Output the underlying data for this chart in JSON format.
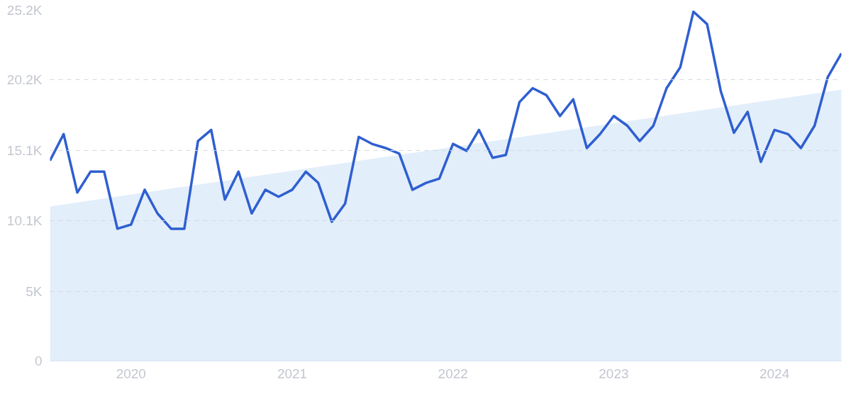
{
  "chart_data": {
    "type": "line",
    "x": [
      "2019-07",
      "2019-08",
      "2019-09",
      "2019-10",
      "2019-11",
      "2019-12",
      "2020-01",
      "2020-02",
      "2020-03",
      "2020-04",
      "2020-05",
      "2020-06",
      "2020-07",
      "2020-08",
      "2020-09",
      "2020-10",
      "2020-11",
      "2020-12",
      "2021-01",
      "2021-02",
      "2021-03",
      "2021-04",
      "2021-05",
      "2021-06",
      "2021-07",
      "2021-08",
      "2021-09",
      "2021-10",
      "2021-11",
      "2021-12",
      "2022-01",
      "2022-02",
      "2022-03",
      "2022-04",
      "2022-05",
      "2022-06",
      "2022-07",
      "2022-08",
      "2022-09",
      "2022-10",
      "2022-11",
      "2022-12",
      "2023-01",
      "2023-02",
      "2023-03",
      "2023-04",
      "2023-05",
      "2023-06",
      "2023-07",
      "2023-08",
      "2023-09",
      "2023-10",
      "2023-11",
      "2023-12",
      "2024-01",
      "2024-02",
      "2024-03",
      "2024-04",
      "2024-05",
      "2024-06"
    ],
    "series": [
      {
        "type": "area",
        "color": "#e3eefb",
        "x": [
          "2019-07",
          "2024-06"
        ],
        "values": [
          11.1,
          19.5
        ]
      },
      {
        "color": "#2f5fd0",
        "values": [
          14.4,
          16.3,
          12.1,
          13.6,
          13.6,
          9.5,
          9.8,
          12.3,
          10.6,
          9.5,
          9.5,
          15.8,
          16.6,
          11.6,
          13.6,
          10.6,
          12.3,
          11.8,
          12.3,
          13.6,
          12.8,
          10.0,
          11.3,
          16.1,
          15.6,
          15.3,
          14.9,
          12.3,
          12.8,
          13.1,
          15.6,
          15.1,
          16.6,
          14.6,
          14.8,
          18.6,
          19.6,
          19.1,
          17.6,
          18.8,
          15.3,
          16.3,
          17.6,
          16.9,
          15.8,
          16.9,
          19.6,
          21.1,
          25.1,
          24.2,
          19.4,
          16.4,
          17.9,
          14.3,
          16.6,
          16.3,
          15.3,
          16.9,
          20.4,
          22.1
        ]
      }
    ],
    "xlim": [
      "2019-07",
      "2024-06"
    ],
    "xticks": [
      {
        "value": "2020-01",
        "label": "2020"
      },
      {
        "value": "2021-01",
        "label": "2021"
      },
      {
        "value": "2022-01",
        "label": "2022"
      },
      {
        "value": "2023-01",
        "label": "2023"
      },
      {
        "value": "2024-01",
        "label": "2024"
      }
    ],
    "ylim": [
      0,
      25.2
    ],
    "yticks": [
      0,
      {
        "value": 5,
        "label": "5K"
      },
      {
        "value": 10.1,
        "label": "10.1K"
      },
      {
        "value": 15.1,
        "label": "15.1K"
      },
      {
        "value": 20.2,
        "label": "20.2K"
      },
      {
        "value": 25.2,
        "label": "25.2K"
      }
    ],
    "grid": "y",
    "line_style": "solid",
    "marker": "none"
  }
}
